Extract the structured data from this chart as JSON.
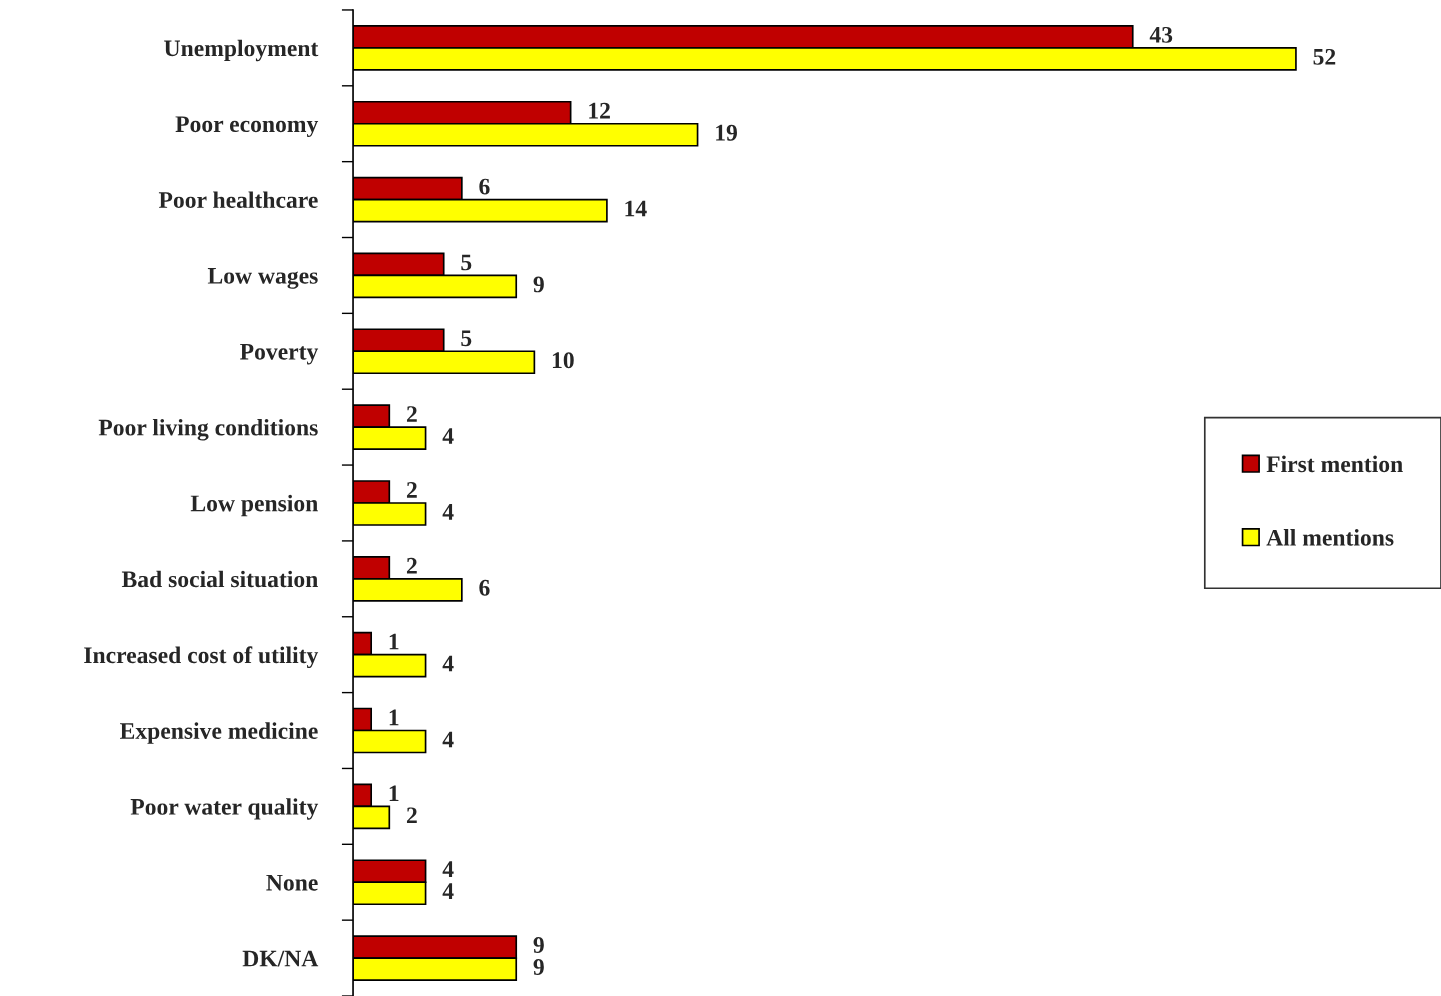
{
  "chart_data": {
    "type": "bar",
    "orientation": "horizontal",
    "categories": [
      "Unemployment",
      "Poor economy",
      "Poor healthcare",
      "Low wages",
      "Poverty",
      "Poor living conditions",
      "Low pension",
      "Bad social situation",
      "Increased cost of utility",
      "Expensive medicine",
      "Poor water quality",
      "None",
      "DK/NA"
    ],
    "series": [
      {
        "name": "First mention",
        "color": "#c00000",
        "values": [
          43,
          12,
          6,
          5,
          5,
          2,
          2,
          2,
          1,
          1,
          1,
          4,
          9
        ]
      },
      {
        "name": "All mentions",
        "color": "#ffff00",
        "values": [
          52,
          19,
          14,
          9,
          10,
          4,
          4,
          6,
          4,
          4,
          2,
          4,
          9
        ]
      }
    ],
    "xlim": [
      0,
      60
    ],
    "data_labels": true,
    "legend": "right",
    "grid": false,
    "tick_labels": "y"
  }
}
